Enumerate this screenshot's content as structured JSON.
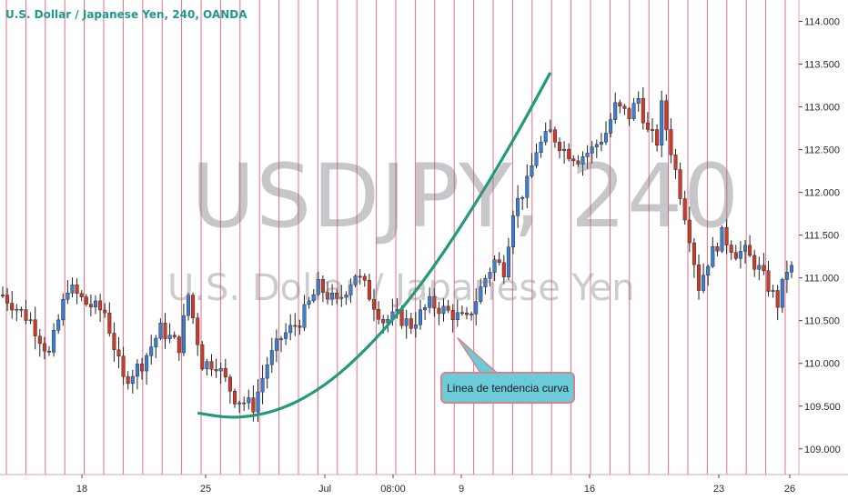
{
  "header": {
    "title": "U.S. Dollar / Japanese Yen, 240, OANDA"
  },
  "watermark": {
    "primary": "USDJPY, 240",
    "secondary": "U.S. Dollar / Japanese Yen"
  },
  "annotation": {
    "label": "Linea de tendencia curva"
  },
  "colors": {
    "up_candle": "#3a7fd4",
    "down_candle": "#cc3a2a",
    "wick": "#222222",
    "trendline": "#1f9a7a",
    "session_lines": "#e5556e",
    "title_text": "#1f9a8a",
    "callout_fill": "#6ccbd8",
    "callout_border": "#d8828c"
  },
  "chart_data": {
    "type": "candlestick",
    "symbol": "USDJPY",
    "interval": "240",
    "source": "OANDA",
    "y_axis": {
      "side": "right",
      "ylim": [
        108.7,
        114.25
      ],
      "ticks": [
        "109.000",
        "109.500",
        "110.000",
        "110.500",
        "111.000",
        "111.500",
        "112.000",
        "112.500",
        "113.000",
        "113.500",
        "114.000"
      ]
    },
    "x_axis": {
      "ticks": [
        "18",
        "25",
        "Jul",
        "08:00",
        "9",
        "16",
        "23",
        "26"
      ]
    },
    "grid": false,
    "close_path": [
      [
        0,
        110.8
      ],
      [
        6,
        110.5
      ],
      [
        10,
        110.1
      ],
      [
        14,
        110.9
      ],
      [
        18,
        110.7
      ],
      [
        22,
        110.6
      ],
      [
        26,
        109.8
      ],
      [
        30,
        110.0
      ],
      [
        34,
        110.4
      ],
      [
        38,
        110.2
      ],
      [
        40,
        110.8
      ],
      [
        43,
        110.0
      ],
      [
        46,
        110.0
      ],
      [
        50,
        109.6
      ],
      [
        54,
        109.5
      ],
      [
        57,
        110.0
      ],
      [
        60,
        110.3
      ],
      [
        64,
        110.5
      ],
      [
        68,
        110.9
      ],
      [
        72,
        110.7
      ],
      [
        76,
        111.05
      ],
      [
        78,
        110.9
      ],
      [
        82,
        110.5
      ],
      [
        85,
        110.55
      ],
      [
        88,
        110.45
      ],
      [
        92,
        110.7
      ],
      [
        96,
        110.6
      ],
      [
        100,
        110.5
      ],
      [
        104,
        111.0
      ],
      [
        106,
        111.2
      ],
      [
        108,
        111.1
      ],
      [
        110,
        111.8
      ],
      [
        113,
        112.1
      ],
      [
        115,
        112.5
      ],
      [
        118,
        112.7
      ],
      [
        121,
        112.5
      ],
      [
        124,
        112.4
      ],
      [
        127,
        112.5
      ],
      [
        130,
        112.7
      ],
      [
        132,
        113.0
      ],
      [
        135,
        112.9
      ],
      [
        137,
        113.1
      ],
      [
        139,
        112.7
      ],
      [
        141,
        112.6
      ],
      [
        142,
        113.0
      ],
      [
        144,
        112.5
      ],
      [
        146,
        112.0
      ],
      [
        148,
        111.5
      ],
      [
        150,
        110.9
      ],
      [
        152,
        111.2
      ],
      [
        155,
        111.5
      ],
      [
        158,
        111.3
      ],
      [
        160,
        111.3
      ],
      [
        163,
        111.1
      ],
      [
        165,
        110.9
      ],
      [
        167,
        110.7
      ],
      [
        169,
        111.1
      ]
    ],
    "trendline": {
      "label": "Linea de tendencia curva",
      "points": [
        [
          42,
          109.42
        ],
        [
          50,
          109.35
        ],
        [
          60,
          109.45
        ],
        [
          70,
          109.75
        ],
        [
          80,
          110.25
        ],
        [
          90,
          110.9
        ],
        [
          100,
          111.7
        ],
        [
          110,
          112.6
        ],
        [
          118,
          113.4
        ]
      ]
    },
    "callout_target": [
      98,
      110.3
    ]
  }
}
